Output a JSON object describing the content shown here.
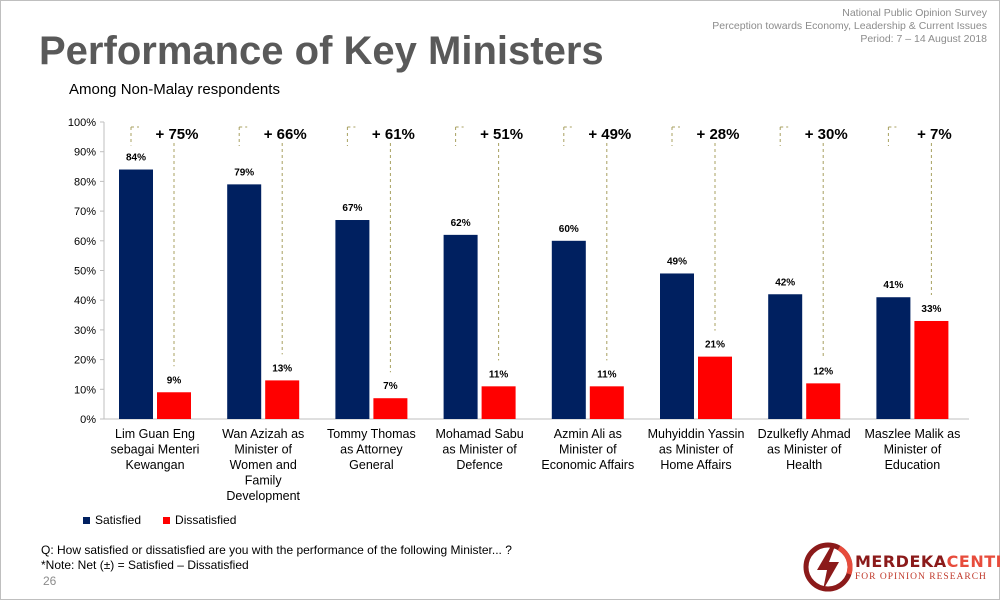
{
  "header": {
    "survey_lines": [
      "National Public Opinion Survey",
      "Perception towards Economy, Leadership & Current Issues",
      "Period: 7 – 14 August 2018"
    ],
    "title": "Performance of Key Ministers",
    "subtitle": "Among Non-Malay respondents"
  },
  "chart_data": {
    "type": "bar",
    "categories": [
      [
        "Lim Guan Eng",
        "sebagai Menteri",
        "Kewangan"
      ],
      [
        "Wan Azizah as",
        "Minister of",
        "Women and",
        "Family",
        "Development"
      ],
      [
        "Tommy Thomas",
        "as Attorney",
        "General"
      ],
      [
        "Mohamad Sabu",
        "as Minister of",
        "Defence"
      ],
      [
        "Azmin Ali as",
        "Minister of",
        "Economic Affairs"
      ],
      [
        "Muhyiddin Yassin",
        "as Minister of",
        "Home Affairs"
      ],
      [
        "Dzulkefly Ahmad",
        "as Minister of",
        "Health"
      ],
      [
        "Maszlee Malik as",
        "Minister of",
        "Education"
      ]
    ],
    "series": [
      {
        "name": "Satisfied",
        "color": "#002060",
        "values": [
          84,
          79,
          67,
          62,
          60,
          49,
          42,
          41
        ]
      },
      {
        "name": "Dissatisfied",
        "color": "#ff0000",
        "values": [
          9,
          13,
          7,
          11,
          11,
          21,
          12,
          33
        ]
      }
    ],
    "data_labels": {
      "Satisfied": [
        "84%",
        "79%",
        "67%",
        "62%",
        "60%",
        "49%",
        "42%",
        "41%"
      ],
      "Dissatisfied": [
        "9%",
        "13%",
        "7%",
        "11%",
        "11%",
        "21%",
        "12%",
        "33%"
      ]
    },
    "net_labels": [
      "+ 75%",
      "+ 66%",
      "+ 61%",
      "+ 51%",
      "+ 49%",
      "+ 28%",
      "+ 30%",
      "+ 7%"
    ],
    "ylim": [
      0,
      100
    ],
    "yticks": [
      "0%",
      "10%",
      "20%",
      "30%",
      "40%",
      "50%",
      "60%",
      "70%",
      "80%",
      "90%",
      "100%"
    ],
    "legend_position": "bottom-left",
    "grid": false
  },
  "footer": {
    "question": "Q: How satisfied or dissatisfied are you with the performance of the following Minister... ?",
    "note": "*Note: Net (±) = Satisfied – Dissatisfied",
    "page_number": "26",
    "logo_main_left": "MERDEKA",
    "logo_main_right": "CENTER",
    "logo_sub": "FOR OPINION RESEARCH",
    "logo_color_dark": "#8b1a1a",
    "logo_color_accent": "#e74c3c"
  }
}
